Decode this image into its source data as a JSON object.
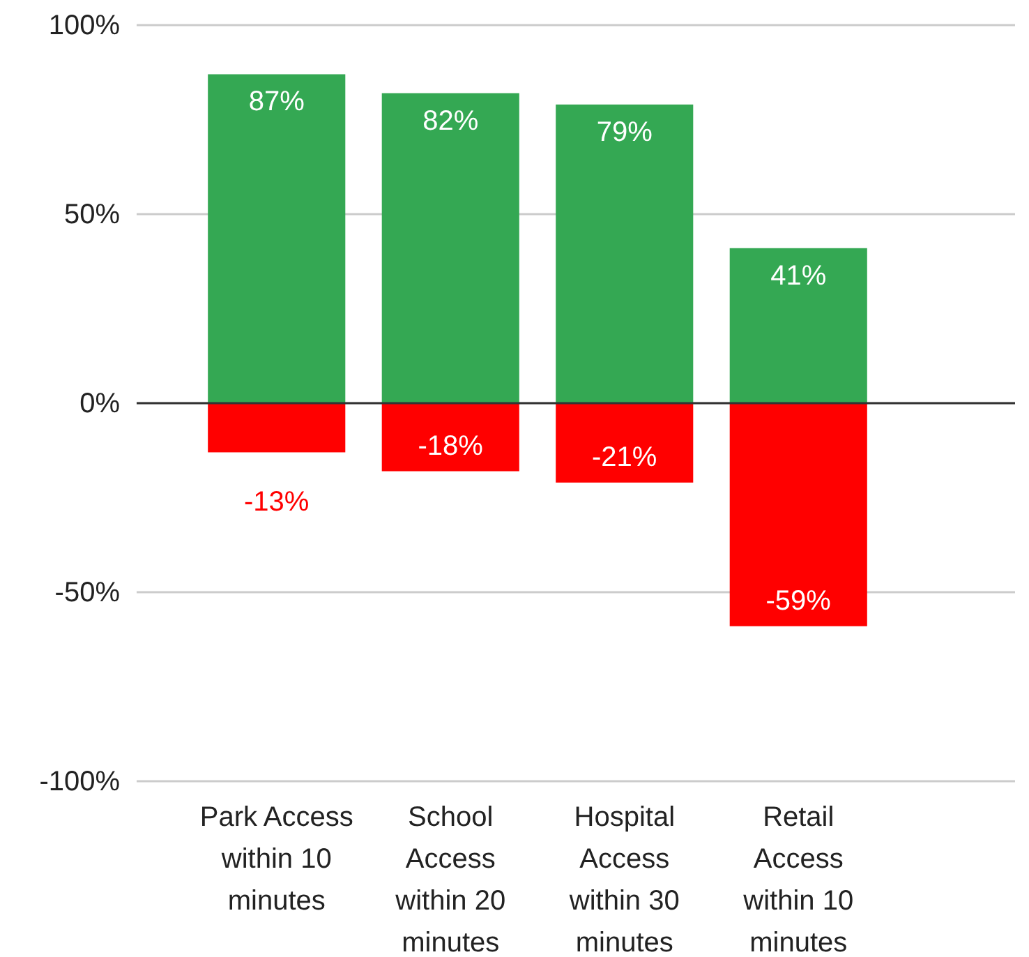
{
  "chart_data": {
    "type": "bar",
    "stacked": true,
    "categories": [
      "Park Access within 10 minutes",
      "School Access within 20 minutes",
      "Hospital Access within 30 minutes",
      "Retail Access within 10 minutes"
    ],
    "series": [
      {
        "color": "#34a853",
        "values": [
          87,
          82,
          79,
          41
        ],
        "value_labels": [
          "87%",
          "82%",
          "79%",
          "41%"
        ]
      },
      {
        "color": "#ff0000",
        "values": [
          -13,
          -18,
          -21,
          -59
        ],
        "value_labels": [
          "-13%",
          "-18%",
          "-21%",
          "-59%"
        ]
      }
    ],
    "ylim": [
      -100,
      100
    ],
    "yticks": [
      {
        "value": -100,
        "label": "-100%"
      },
      {
        "value": -50,
        "label": "-50%"
      },
      {
        "value": 0,
        "label": "0%"
      },
      {
        "value": 50,
        "label": "50%"
      },
      {
        "value": 100,
        "label": "100%"
      }
    ],
    "grid": "y"
  }
}
